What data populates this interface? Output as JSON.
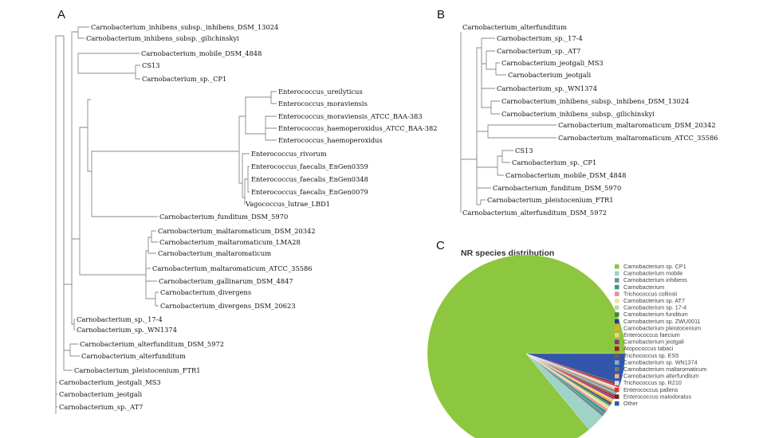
{
  "panels": {
    "a": "A",
    "b": "B",
    "c": "C"
  },
  "tree_a": {
    "leaves": [
      "Carnobacterium_inhibens_subsp._inhibens_DSM_13024",
      "Carnobacterium_inhibens_subsp._gilichinskyi",
      "Carnobacterium_mobile_DSM_4848",
      "CS13",
      "Carnobacterium_sp._CP1",
      "Enterococcus_ureilyticus",
      "Enterococcus_moraviensis",
      "Enterococcus_moraviensis_ATCC_BAA-383",
      "Enterococcus_haemoperoxidus_ATCC_BAA-382",
      "Enterococcus_haemoperoxidus",
      "Enterococcus_rivorum",
      "Enterococcus_faecalis_EnGen0359",
      "Enterococcus_faecalis_EnGen0348",
      "Enterococcus_faecalis_EnGen0079",
      "Vagococcus_lutrae_LBD1",
      "Carnobacterium_funditum_DSM_5970",
      "Carnobacterium_maltaromaticum_DSM_20342",
      "Carnobacterium_maltaromaticum_LMA28",
      "Carnobacterium_maltaromaticum",
      "Carnobacterium_maltaromaticum_ATCC_35586",
      "Carnobacterium_gallinarum_DSM_4847",
      "Carnobacterium_divergens",
      "Carnobacterium_divergens_DSM_20623",
      "Carnobacterium_sp._17-4",
      "Carnobacterium_sp._WN1374",
      "Carnobacterium_alterfunditum_DSM_5972",
      "Carnobacterium_alterfunditum",
      "Carnobacterium_pleistocenium_FTR1",
      "Carnobacterium_jeotgali_MS3",
      "Carnobacterium_jeotgali",
      "Carnobacterium_sp._AT7"
    ]
  },
  "tree_b": {
    "leaves": [
      "Carnobacterium_alterfunditum",
      "Carnobacterium_sp._17-4",
      "Carnobacterium_sp._AT7",
      "Carnobacterium_jeotgali_MS3",
      "Carnobacterium_jeotgali",
      "Carnobacterium_sp._WN1374",
      "Carnobacterium_inhibens_subsp._inhibens_DSM_13024",
      "Carnobacterium_inhibens_subsp._gilichinskyi",
      "Carnobacterium_maltaromaticum_DSM_20342",
      "Carnobacterium_maltaromaticum_ATCC_35586",
      "CS13",
      "Carnobacterium_sp._CP1",
      "Carnobacterium_mobile_DSM_4848",
      "Carnobacterium_funditum_DSM_5970",
      "Carnobacterium_pleistocenium_FTR1",
      "Carnobacterium_alterfunditum_DSM_5972"
    ]
  },
  "chart_data": {
    "type": "pie",
    "title": "NR species distribution",
    "legend_position": "right",
    "slices": [
      {
        "name": "Carnobacterium sp. CP1",
        "value": 86.0,
        "color": "#8dc63f"
      },
      {
        "name": "Carnobacterium mobile",
        "value": 3.0,
        "color": "#9fd3c7"
      },
      {
        "name": "Carnobacterium inhibens",
        "value": 0.6,
        "color": "#6d8f97"
      },
      {
        "name": "Carnobacterium",
        "value": 0.5,
        "color": "#2e9f7a"
      },
      {
        "name": "Trichococcus collinsii",
        "value": 0.4,
        "color": "#f08a9a"
      },
      {
        "name": "Carnobacterium sp. AT7",
        "value": 0.3,
        "color": "#f5e29a"
      },
      {
        "name": "Carnobacterium sp. 17-4",
        "value": 0.3,
        "color": "#b9d9a8"
      },
      {
        "name": "Carnobacterium funditum",
        "value": 0.3,
        "color": "#3a8a3a"
      },
      {
        "name": "Carnobacterium sp. ZWU0011",
        "value": 0.3,
        "color": "#2b3a8c"
      },
      {
        "name": "Carnobacterium pleistocenium",
        "value": 0.3,
        "color": "#f6a623"
      },
      {
        "name": "Enterococcus faecium",
        "value": 0.3,
        "color": "#f7d26b"
      },
      {
        "name": "Carnobacterium jeotgali",
        "value": 0.3,
        "color": "#8b2f8b"
      },
      {
        "name": "Atopococcus tabaci",
        "value": 0.3,
        "color": "#9b1b30"
      },
      {
        "name": "Trichococcus sp. ES5",
        "value": 0.3,
        "color": "#8a5a2b"
      },
      {
        "name": "Carnobacterium sp. WN1374",
        "value": 0.3,
        "color": "#7fb3d5"
      },
      {
        "name": "Carnobacterium maltaromaticum",
        "value": 0.3,
        "color": "#777777"
      },
      {
        "name": "Carnobacterium alterfunditum",
        "value": 0.3,
        "color": "#f4b183"
      },
      {
        "name": "Trichococcus sp. R210",
        "value": 0.3,
        "color": "#cfe8f3"
      },
      {
        "name": "Enterococcus pallens",
        "value": 0.3,
        "color": "#e03030"
      },
      {
        "name": "Enterococcus malodoratus",
        "value": 0.3,
        "color": "#7a1a1a"
      },
      {
        "name": "Other",
        "value": 5.0,
        "color": "#3355aa"
      }
    ]
  }
}
